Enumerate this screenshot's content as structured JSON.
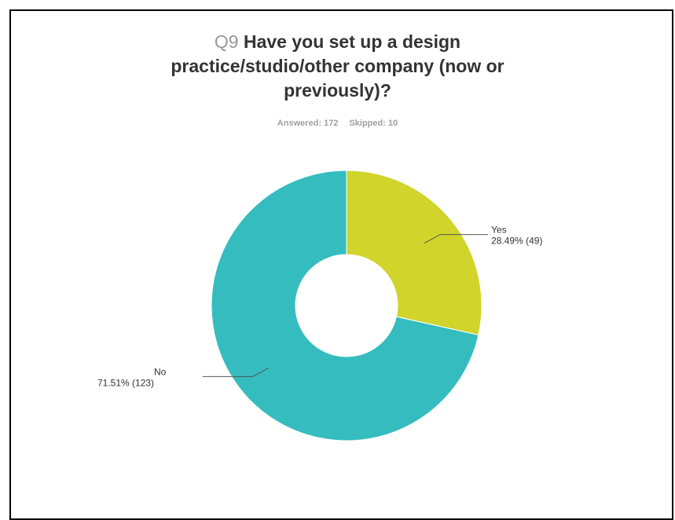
{
  "survey": {
    "question_number": "Q9",
    "title_lines": [
      "Have you set up a design",
      "practice/studio/other company (now or",
      "previously)?"
    ],
    "answered": "Answered: 172",
    "skipped": "Skipped: 10"
  },
  "chart_data": {
    "type": "pie",
    "style": "donut",
    "title": "Q9 Have you set up a design practice/studio/other company (now or previously)?",
    "categories": [
      "Yes",
      "No"
    ],
    "values": [
      28.49,
      71.51
    ],
    "counts": [
      49,
      123
    ],
    "labels": [
      "28.49% (49)",
      "71.51% (123)"
    ],
    "colors": [
      "#d0d42b",
      "#35bcbf"
    ]
  }
}
